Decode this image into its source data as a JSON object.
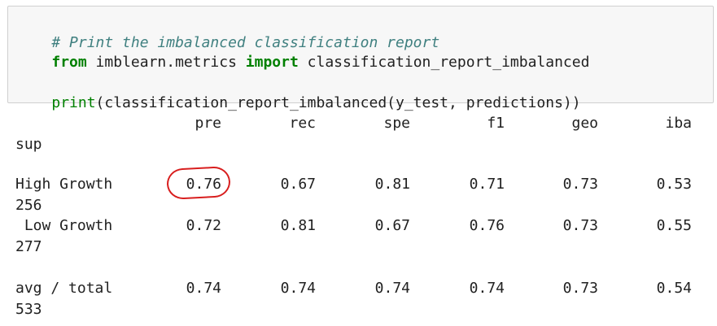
{
  "code": {
    "comment": "# Print the imbalanced classification report",
    "line2_kw1": "from",
    "line2_mod": " imblearn.metrics ",
    "line2_kw2": "import",
    "line2_rest": " classification_report_imbalanced",
    "line4_builtin": "print",
    "line4_rest": "(classification_report_imbalanced(y_test, predictions))"
  },
  "report": {
    "headers": [
      "pre",
      "rec",
      "spe",
      "f1",
      "geo",
      "iba",
      "sup"
    ],
    "rows": [
      {
        "label": "High Growth",
        "values": [
          "0.76",
          "0.67",
          "0.81",
          "0.71",
          "0.73",
          "0.53"
        ],
        "sup": "256"
      },
      {
        "label": " Low Growth",
        "values": [
          "0.72",
          "0.81",
          "0.67",
          "0.76",
          "0.73",
          "0.55"
        ],
        "sup": "277"
      },
      {
        "label": "avg / total",
        "values": [
          "0.74",
          "0.74",
          "0.74",
          "0.74",
          "0.73",
          "0.54"
        ],
        "sup": "533"
      }
    ]
  },
  "annotation": {
    "color": "#d81e1e",
    "circled_value": "0.76"
  }
}
